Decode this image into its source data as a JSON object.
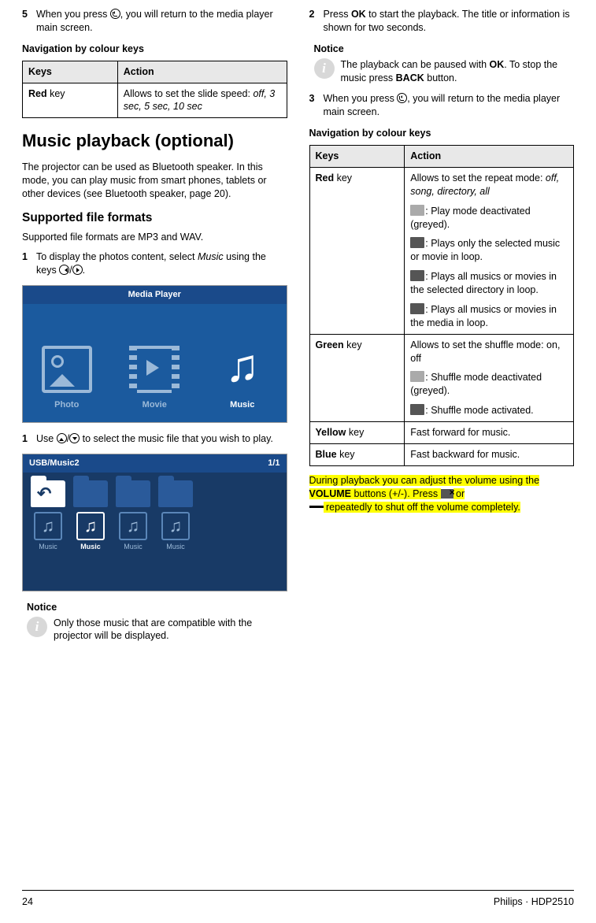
{
  "left": {
    "step5_num": "5",
    "step5_a": "When you press ",
    "step5_b": ", you will return to the media player main screen.",
    "nav_heading": "Navigation by colour keys",
    "table1": {
      "h1": "Keys",
      "h2": "Action",
      "r1c1_b": "Red",
      "r1c1_t": " key",
      "r1c2_a": "Allows to set the slide speed: ",
      "r1c2_i": "off, 3 sec, 5 sec, 10 sec"
    },
    "h1": "Music playback (optional)",
    "p1": "The projector can be used as Bluetooth speaker. In this mode, you can play music from smart phones, tablets or other devices (see Bluetooth speaker, page 20).",
    "h2": "Supported file formats",
    "p2": "Supported file formats are MP3 and WAV.",
    "step1a_num": "1",
    "step1a_a": "To display the photos content, select ",
    "step1a_i": "Music",
    "step1a_b": " using the keys ",
    "step1a_c": "/",
    "step1a_d": ".",
    "media_title": "Media Player",
    "media_photo": "Photo",
    "media_movie": "Movie",
    "media_music": "Music",
    "step1b_num": "1",
    "step1b_a": "Use ",
    "step1b_b": "/",
    "step1b_c": " to select the music file that you wish to play.",
    "usb_title_l": "USB/Music2",
    "usb_title_r": "1/1",
    "usb_label": "Music",
    "notice1_title": "Notice",
    "notice1_text": "Only those music that are compatible with the projector will be displayed."
  },
  "right": {
    "step2_num": "2",
    "step2_a": "Press ",
    "step2_b": "OK",
    "step2_c": " to start the playback. The title or information is shown for two seconds.",
    "notice2_title": "Notice",
    "notice2_a": "The playback can be paused with ",
    "notice2_b": "OK",
    "notice2_c": ". To stop the music press ",
    "notice2_d": "BACK",
    "notice2_e": " button.",
    "step3_num": "3",
    "step3_a": "When you press ",
    "step3_b": ", you will return to the media player main screen.",
    "nav_heading": "Navigation by colour keys",
    "table2": {
      "h1": "Keys",
      "h2": "Action",
      "red_k_b": "Red",
      "red_k_t": " key",
      "red_a1": "Allows to set the repeat mode: ",
      "red_a1_i": "off, song, directory, all",
      "red_a2": ": Play mode deactivated (greyed).",
      "red_a3": ": Plays only the selected music or movie in loop.",
      "red_a4": ": Plays all musics or movies in the selected directory in loop.",
      "red_a5": ": Plays all musics or movies in the media in loop.",
      "green_k_b": "Green",
      "green_k_t": " key",
      "green_a1": "Allows to set the shuffle mode: on, off",
      "green_a2": ": Shuffle mode deactivated (greyed).",
      "green_a3": ": Shuffle mode activated.",
      "yellow_k_b": "Yellow",
      "yellow_k_t": " key",
      "yellow_a": "Fast forward for music.",
      "blue_k_b": "Blue",
      "blue_k_t": " key",
      "blue_a": "Fast backward for music."
    },
    "vol_a": "During playback you can adjust the volume using the ",
    "vol_b": "VOLUME",
    "vol_c": " buttons (+/-). Press ",
    "vol_d": " or ",
    "vol_e": " repeatedly to shut off the volume completely."
  },
  "footer": {
    "page": "24",
    "model": "Philips · HDP2510"
  }
}
